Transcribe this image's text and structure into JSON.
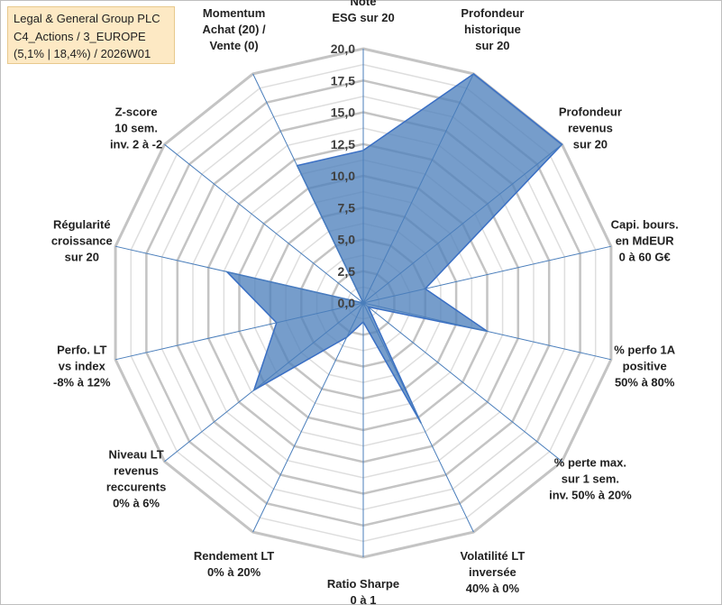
{
  "title": {
    "line1": "Legal & General Group PLC",
    "line2": "C4_Actions / 3_EUROPE",
    "line3": "(5,1% | 18,4%) / 2026W01"
  },
  "chart_data": {
    "type": "radar",
    "rmin": 0,
    "rmax": 20,
    "ticks": [
      "0,0",
      "2,5",
      "5,0",
      "7,5",
      "10,0",
      "12,5",
      "15,0",
      "17,5",
      "20,0"
    ],
    "grid": true,
    "axes": [
      [
        "Note",
        "ESG sur 20"
      ],
      [
        "Profondeur",
        "historique",
        "sur 20"
      ],
      [
        "Profondeur",
        "revenus",
        "sur 20"
      ],
      [
        "Capi. bours.",
        "en MdEUR",
        "0 à 60 G€"
      ],
      [
        "% perfo 1A",
        "positive",
        "50% à 80%"
      ],
      [
        "% perte max.",
        "sur 1 sem.",
        "inv. 50% à 20%"
      ],
      [
        "Volatilité LT",
        "inversée",
        "40% à 0%"
      ],
      [
        "Ratio Sharpe",
        "0 à 1"
      ],
      [
        "Rendement LT",
        "0% à 20%"
      ],
      [
        "Niveau LT",
        "revenus",
        "reccurents",
        "0% à 6%"
      ],
      [
        "Perfo. LT",
        "vs index",
        "-8% à 12%"
      ],
      [
        "Régularité",
        "croissance",
        "sur 20"
      ],
      [
        "Z-score",
        "10 sem.",
        "inv. 2 à -2"
      ],
      [
        "Momentum",
        "Achat (20) /",
        "Vente (0)"
      ]
    ],
    "values": [
      12,
      20,
      20,
      5,
      10,
      0.5,
      10.5,
      1.5,
      3,
      11,
      7,
      11,
      0,
      12
    ],
    "colors": {
      "fill": "#4f81bd",
      "stroke": "#3a6fc4",
      "grid": "#c4c4c4",
      "spoke": "#4a7ebb"
    }
  }
}
